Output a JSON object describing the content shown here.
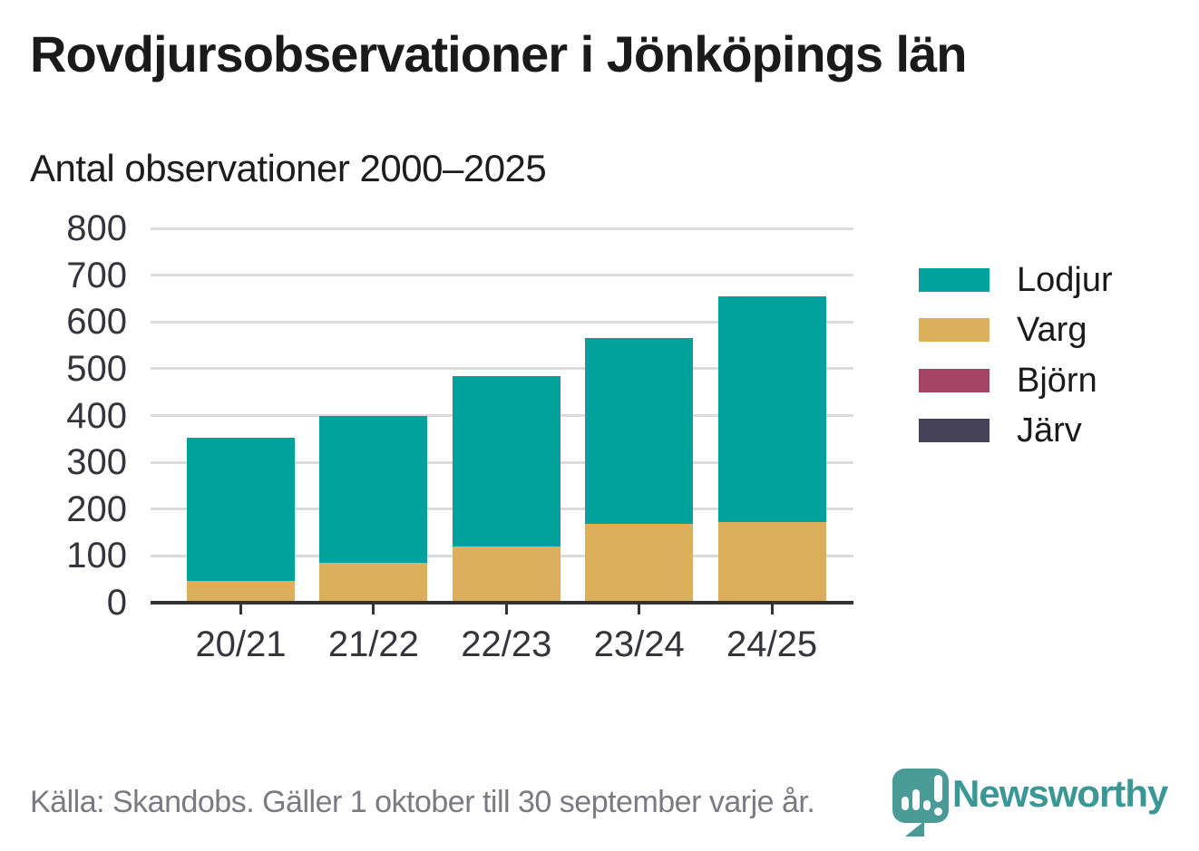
{
  "header": {
    "title": "Rovdjursobservationer i Jönköpings län",
    "subtitle": "Antal observationer 2000–2025"
  },
  "chart_data": {
    "type": "bar",
    "stacked": true,
    "title": "Rovdjursobservationer i Jönköpings län",
    "subtitle": "Antal observationer 2000–2025",
    "categories": [
      "20/21",
      "21/22",
      "22/23",
      "23/24",
      "24/25"
    ],
    "series": [
      {
        "name": "Lodjur",
        "color": "#00a29b",
        "values": [
          306,
          315,
          364,
          397,
          483
        ]
      },
      {
        "name": "Varg",
        "color": "#ddae5c",
        "values": [
          47,
          85,
          121,
          168,
          172
        ]
      },
      {
        "name": "Björn",
        "color": "#a64466",
        "values": [
          0,
          0,
          0,
          0,
          0
        ]
      },
      {
        "name": "Järv",
        "color": "#45425a",
        "values": [
          0,
          0,
          0,
          0,
          0
        ]
      }
    ],
    "stack_totals": [
      353,
      400,
      485,
      565,
      655
    ],
    "xlabel": "",
    "ylabel": "",
    "ylim": [
      0,
      800
    ],
    "yticks": [
      0,
      100,
      200,
      300,
      400,
      500,
      600,
      700,
      800
    ],
    "grid": "horizontal",
    "legend_position": "right"
  },
  "colors": {
    "grid": "#dcdcdc",
    "axis": "#333333",
    "axis_text": "#35343c",
    "title_text": "#1a1a1a",
    "source_text": "#7b7a82",
    "brand_teal": "#3a9795",
    "logo_bubble": "#4a9a97"
  },
  "footer": {
    "source": "Källa: Skandobs. Gäller 1 oktober till 30 september varje år.",
    "brand": "Newsworthy"
  }
}
